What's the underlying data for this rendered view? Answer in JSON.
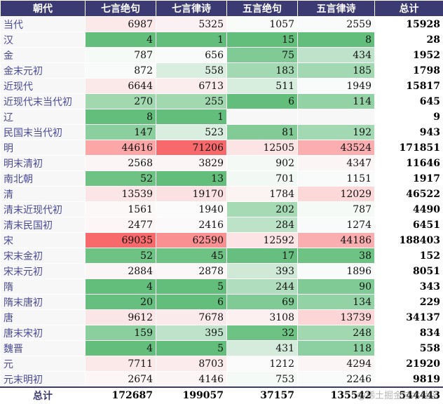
{
  "headers": [
    "朝代",
    "七言绝句",
    "七言律诗",
    "五言绝句",
    "五言律诗",
    "总计"
  ],
  "rows": [
    {
      "dynasty": "当代",
      "values": [
        6987,
        5325,
        1057,
        2559
      ],
      "total": 15928,
      "colors": [
        "#fbe9ea",
        "#fcf1f2",
        "#f9fbf9",
        "#f8fbf9"
      ]
    },
    {
      "dynasty": "汉",
      "values": [
        4,
        1,
        15,
        8
      ],
      "total": 28,
      "colors": [
        "#63be7b",
        "#63be7b",
        "#63be7b",
        "#63be7b"
      ]
    },
    {
      "dynasty": "金",
      "values": [
        787,
        656,
        75,
        434
      ],
      "total": 1952,
      "colors": [
        "#f6faf7",
        "#f9fbfa",
        "#7fca95",
        "#bfe3ca"
      ]
    },
    {
      "dynasty": "金末元初",
      "values": [
        872,
        558,
        183,
        185
      ],
      "total": 1798,
      "colors": [
        "#f8fbf9",
        "#d9eedf",
        "#a2d9b2",
        "#a2d9b2"
      ]
    },
    {
      "dynasty": "近现代",
      "values": [
        6644,
        6713,
        511,
        1949
      ],
      "total": 15817,
      "colors": [
        "#fbe9ea",
        "#fbeced",
        "#d7edde",
        "#f8fbf9"
      ]
    },
    {
      "dynasty": "近现代末当代初",
      "values": [
        270,
        255,
        6,
        114
      ],
      "total": 645,
      "colors": [
        "#a1d8b0",
        "#a1d8b0",
        "#63be7b",
        "#92d2a5"
      ]
    },
    {
      "dynasty": "辽",
      "values": [
        8,
        1,
        null,
        null
      ],
      "total": 9,
      "colors": [
        "#63be7b",
        "#63be7b",
        "#f7f7f7",
        "#f7f7f7"
      ]
    },
    {
      "dynasty": "民国末当代初",
      "values": [
        147,
        523,
        81,
        192
      ],
      "total": 943,
      "colors": [
        "#8bcf9f",
        "#d9eedf",
        "#82cb97",
        "#a2d9b2"
      ]
    },
    {
      "dynasty": "明",
      "values": [
        44616,
        71206,
        12505,
        43524
      ],
      "total": 171851,
      "colors": [
        "#fca6a8",
        "#f8696b",
        "#fce4e5",
        "#fbaeb0"
      ]
    },
    {
      "dynasty": "明末清初",
      "values": [
        2568,
        3829,
        902,
        4347
      ],
      "total": 11646,
      "colors": [
        "#fcf5f5",
        "#fcf5f6",
        "#f4f9f6",
        "#fcf5f6"
      ]
    },
    {
      "dynasty": "南北朝",
      "values": [
        52,
        13,
        701,
        1151
      ],
      "total": 1917,
      "colors": [
        "#6ec283",
        "#63be7b",
        "#f2f8f4",
        "#f8fbf9"
      ]
    },
    {
      "dynasty": "清",
      "values": [
        13539,
        19170,
        1784,
        12029
      ],
      "total": 46522,
      "colors": [
        "#fce5e6",
        "#fce1e2",
        "#fcf3f3",
        "#fcd8d9"
      ]
    },
    {
      "dynasty": "清末近现代初",
      "values": [
        1561,
        1940,
        202,
        787
      ],
      "total": 4490,
      "colors": [
        "#fcf8f8",
        "#fbfbfb",
        "#a5dab4",
        "#f5faf6"
      ]
    },
    {
      "dynasty": "清末民国初",
      "values": [
        2477,
        2416,
        284,
        1274
      ],
      "total": 6451,
      "colors": [
        "#fcf6f6",
        "#fbf9f9",
        "#bce2c8",
        "#f8fbf9"
      ]
    },
    {
      "dynasty": "宋",
      "values": [
        69035,
        62590,
        12592,
        44186
      ],
      "total": 188403,
      "colors": [
        "#f8696b",
        "#fa9092",
        "#fce4e5",
        "#fbaeb0"
      ]
    },
    {
      "dynasty": "宋末金初",
      "values": [
        52,
        45,
        17,
        38
      ],
      "total": 152,
      "colors": [
        "#6ec283",
        "#6ec283",
        "#66bf7e",
        "#6ec283"
      ]
    },
    {
      "dynasty": "宋末元初",
      "values": [
        2884,
        2878,
        393,
        1896
      ],
      "total": 8051,
      "colors": [
        "#fcf5f5",
        "#fbf7f7",
        "#cfe9d6",
        "#f8fbf9"
      ]
    },
    {
      "dynasty": "隋",
      "values": [
        4,
        5,
        244,
        90
      ],
      "total": 343,
      "colors": [
        "#63be7b",
        "#63be7b",
        "#b0ddbd",
        "#7fca95"
      ]
    },
    {
      "dynasty": "隋末唐初",
      "values": [
        20,
        6,
        69,
        134
      ],
      "total": 229,
      "colors": [
        "#66bf7e",
        "#63be7b",
        "#7fca95",
        "#92d2a5"
      ]
    },
    {
      "dynasty": "唐",
      "values": [
        9612,
        7678,
        3108,
        13739
      ],
      "total": 34137,
      "colors": [
        "#fbe6e7",
        "#fbeaeb",
        "#fcf0f1",
        "#fcd6d7"
      ]
    },
    {
      "dynasty": "唐末宋初",
      "values": [
        159,
        395,
        32,
        248
      ],
      "total": 834,
      "colors": [
        "#8bcf9f",
        "#bfe3ca",
        "#6ec283",
        "#a1d8b0"
      ]
    },
    {
      "dynasty": "魏晋",
      "values": [
        4,
        5,
        431,
        118
      ],
      "total": 558,
      "colors": [
        "#63be7b",
        "#63be7b",
        "#d5ecdc",
        "#8ccfa0"
      ]
    },
    {
      "dynasty": "元",
      "values": [
        7711,
        8703,
        1212,
        4294
      ],
      "total": 21920,
      "colors": [
        "#fbe9ea",
        "#fcebec",
        "#fbfbfb",
        "#fcf5f6"
      ]
    },
    {
      "dynasty": "元末明初",
      "values": [
        2674,
        4146,
        753,
        2246
      ],
      "total": 9819,
      "colors": [
        "#fcf6f6",
        "#fcf5f6",
        "#f5faf6",
        "#f8fbf9"
      ]
    }
  ],
  "footer": {
    "label": "总计",
    "values": [
      172687,
      199057,
      37157,
      135542
    ],
    "total": 544443
  },
  "watermark": "@稀土掘金技术社区"
}
